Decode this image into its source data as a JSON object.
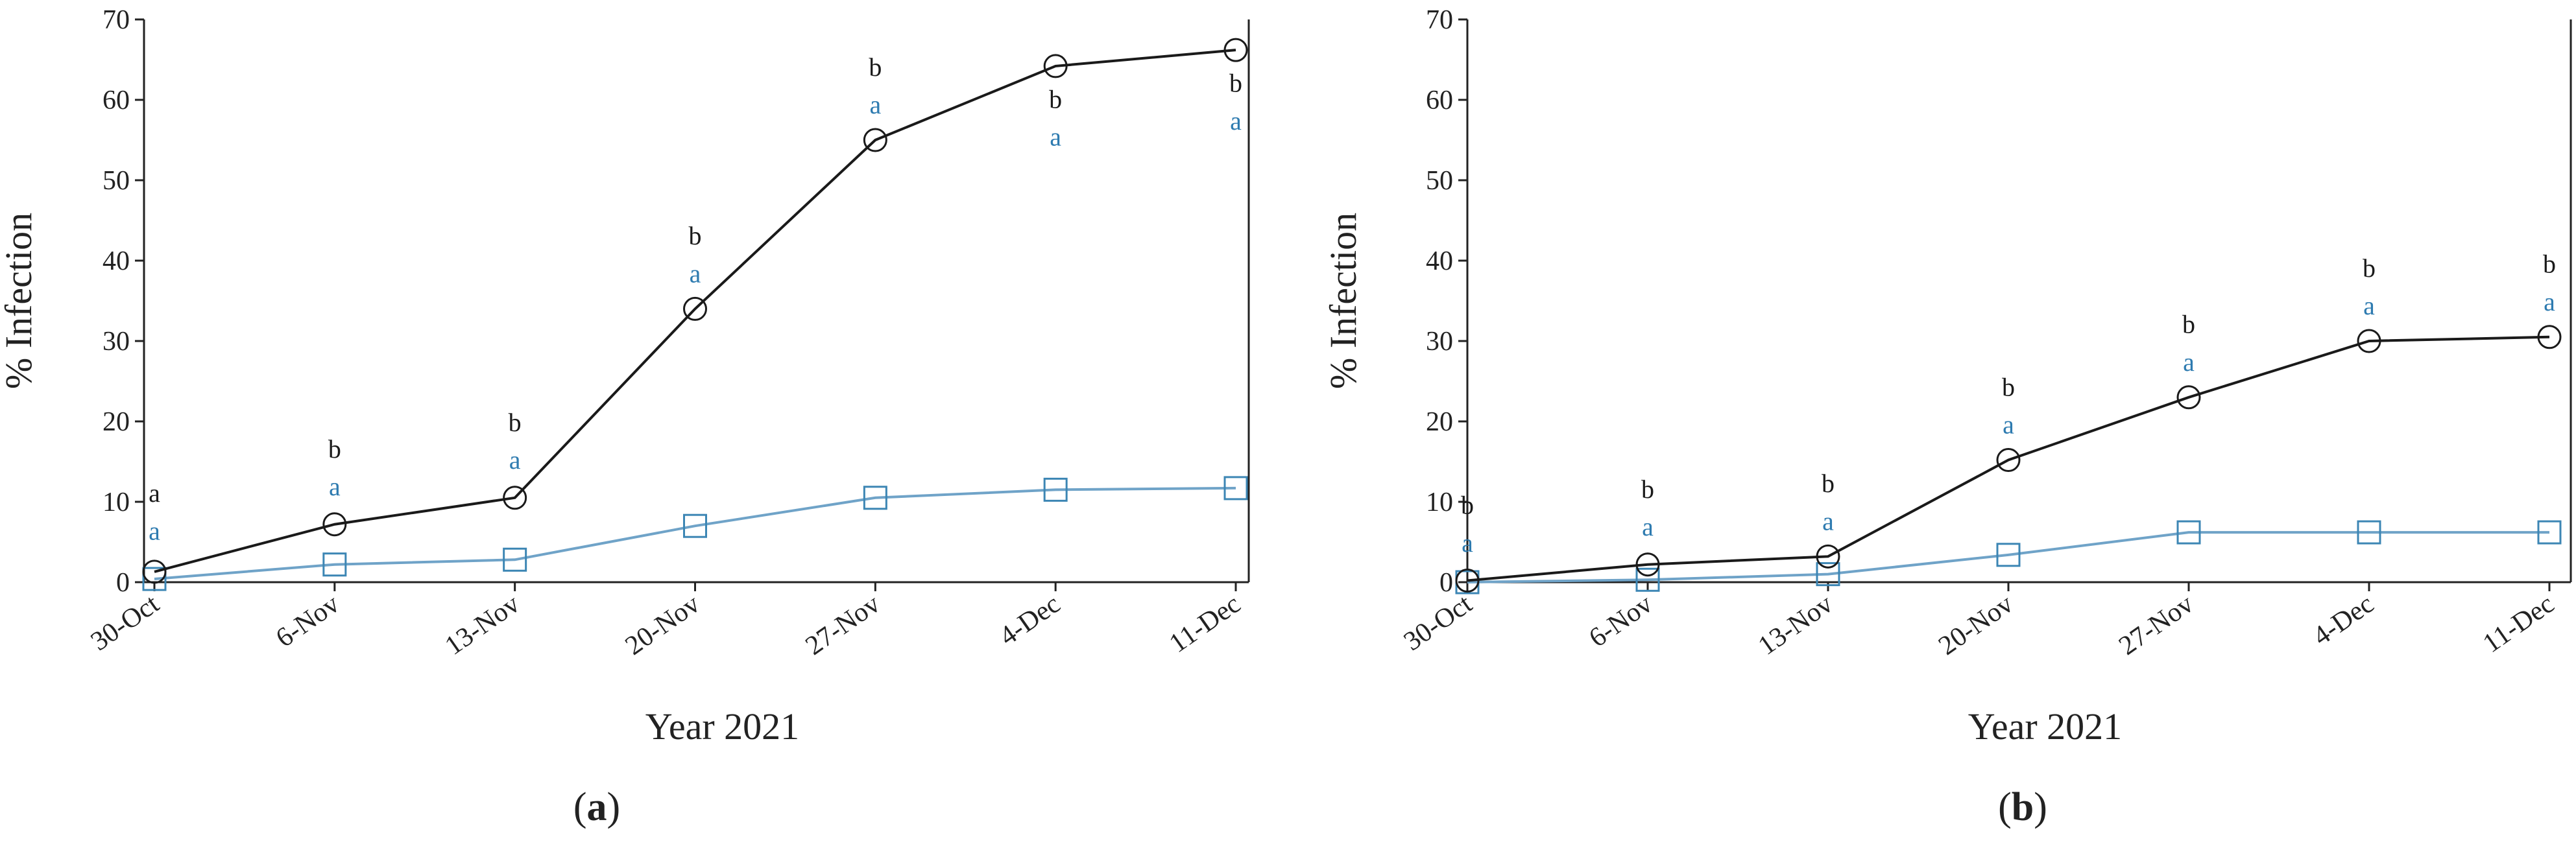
{
  "colors": {
    "series_circle": "#1a1a1a",
    "series_square": "#6fa3c8",
    "marker_square_stroke": "#3c86b4",
    "annotation_top": "#1a1a1a",
    "annotation_bottom": "#2e7bb0",
    "axis": "#222222"
  },
  "chart_data": [
    {
      "type": "line",
      "panel_label": "(a)",
      "panel_letter": "a",
      "xlabel": "Year 2021",
      "ylabel": "% Infection",
      "ylim": [
        0,
        70
      ],
      "yticks": [
        0,
        10,
        20,
        30,
        40,
        50,
        60,
        70
      ],
      "categories": [
        "30-Oct",
        "6-Nov",
        "13-Nov",
        "20-Nov",
        "27-Nov",
        "4-Dec",
        "11-Dec"
      ],
      "grid": false,
      "legend": "none",
      "series": [
        {
          "marker": "circle",
          "values": [
            1.3,
            7.2,
            10.5,
            34.0,
            55.0,
            64.2,
            66.2
          ]
        },
        {
          "marker": "square",
          "values": [
            0.4,
            2.2,
            2.8,
            7.0,
            10.5,
            11.5,
            11.7
          ]
        }
      ],
      "annotations": [
        {
          "category_index": 0,
          "top": "a",
          "bottom": "a",
          "top_value": 10.0,
          "bottom_value": 5.3
        },
        {
          "category_index": 1,
          "top": "b",
          "bottom": "a",
          "top_value": 15.5,
          "bottom_value": 10.8
        },
        {
          "category_index": 2,
          "top": "b",
          "bottom": "a",
          "top_value": 18.8,
          "bottom_value": 14.1
        },
        {
          "category_index": 3,
          "top": "b",
          "bottom": "a",
          "top_value": 42.0,
          "bottom_value": 37.3
        },
        {
          "category_index": 4,
          "top": "b",
          "bottom": "a",
          "top_value": 63.0,
          "bottom_value": 58.3
        },
        {
          "category_index": 5,
          "top": "b",
          "bottom": "a",
          "top_value": 59.0,
          "bottom_value": 54.3
        },
        {
          "category_index": 6,
          "top": "b",
          "bottom": "a",
          "top_value": 61.0,
          "bottom_value": 56.3
        }
      ]
    },
    {
      "type": "line",
      "panel_label": "(b)",
      "panel_letter": "b",
      "xlabel": "Year 2021",
      "ylabel": "% Infection",
      "ylim": [
        0,
        70
      ],
      "yticks": [
        0,
        10,
        20,
        30,
        40,
        50,
        60,
        70
      ],
      "categories": [
        "30-Oct",
        "6-Nov",
        "13-Nov",
        "20-Nov",
        "27-Nov",
        "4-Dec",
        "11-Dec"
      ],
      "grid": false,
      "legend": "none",
      "series": [
        {
          "marker": "circle",
          "values": [
            0.2,
            2.2,
            3.2,
            15.2,
            23.0,
            30.0,
            30.5
          ]
        },
        {
          "marker": "square",
          "values": [
            0.0,
            0.3,
            1.0,
            3.4,
            6.2,
            6.2,
            6.2
          ]
        }
      ],
      "annotations": [
        {
          "category_index": 0,
          "top": "b",
          "bottom": "a",
          "top_value": 8.5,
          "bottom_value": 3.8
        },
        {
          "category_index": 1,
          "top": "b",
          "bottom": "a",
          "top_value": 10.5,
          "bottom_value": 5.8
        },
        {
          "category_index": 2,
          "top": "b",
          "bottom": "a",
          "top_value": 11.2,
          "bottom_value": 6.5
        },
        {
          "category_index": 3,
          "top": "b",
          "bottom": "a",
          "top_value": 23.2,
          "bottom_value": 18.5
        },
        {
          "category_index": 4,
          "top": "b",
          "bottom": "a",
          "top_value": 31.0,
          "bottom_value": 26.3
        },
        {
          "category_index": 5,
          "top": "b",
          "bottom": "a",
          "top_value": 38.0,
          "bottom_value": 33.3
        },
        {
          "category_index": 6,
          "top": "b",
          "bottom": "a",
          "top_value": 38.5,
          "bottom_value": 33.8
        }
      ]
    }
  ]
}
